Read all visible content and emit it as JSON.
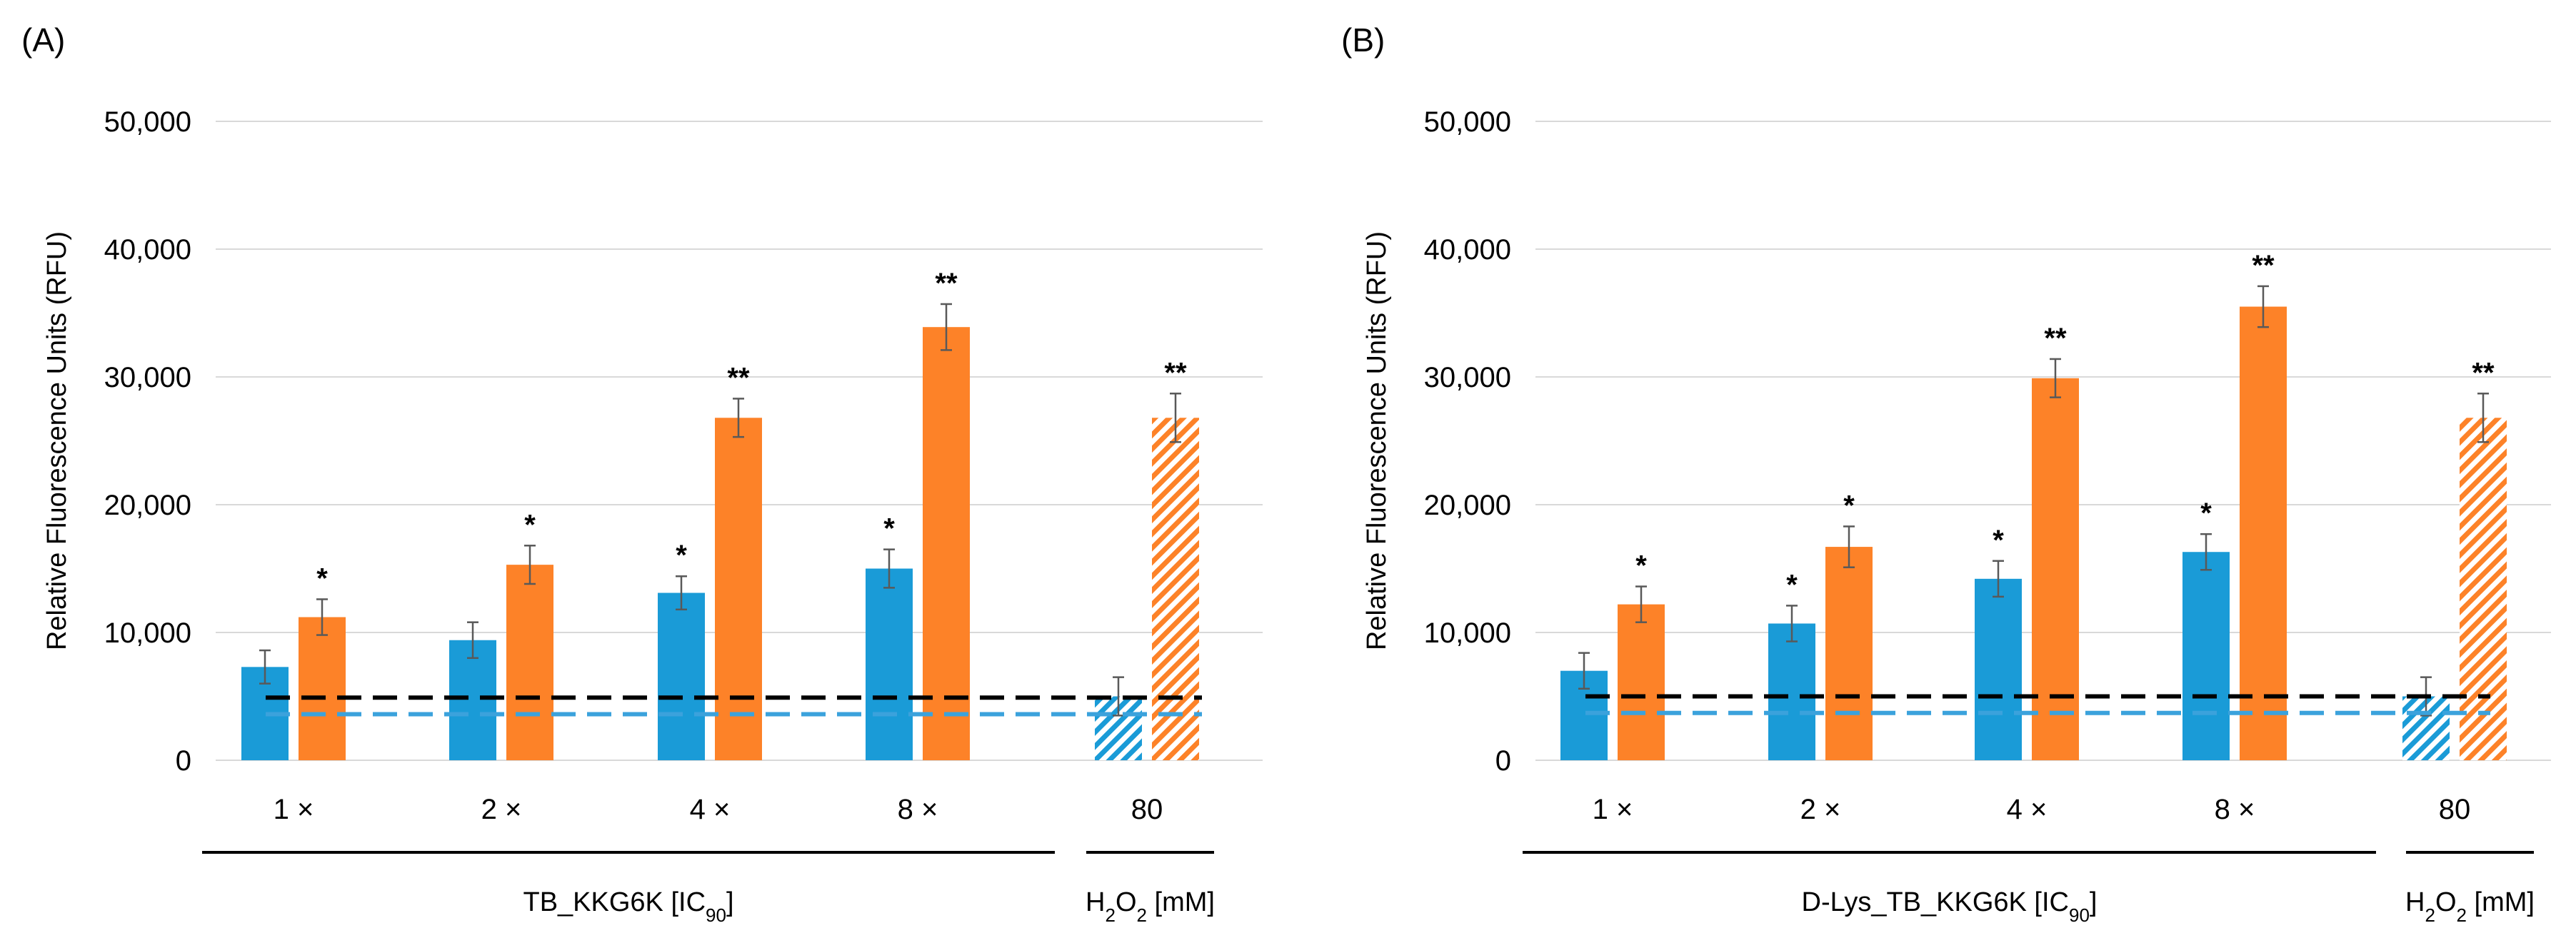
{
  "colors": {
    "blue": "#1a9bd7",
    "orange": "#fd8228",
    "grid": "#d9d9d9",
    "baseline_black": "#000000",
    "baseline_blue": "#3ba2dc",
    "errorbar": "#595959"
  },
  "chart_data": [
    {
      "type": "bar",
      "panel_label": "(A)",
      "ylabel": "Relative Fluorescence Units (RFU)",
      "ylim": [
        0,
        50000
      ],
      "yticks": [
        0,
        10000,
        20000,
        30000,
        40000,
        50000
      ],
      "ytick_labels": [
        "0",
        "10,000",
        "20,000",
        "30,000",
        "40,000",
        "50,000"
      ],
      "grid": true,
      "categories": [
        "1 ×",
        "2 ×",
        "4 ×",
        "8 ×",
        "80"
      ],
      "series": [
        {
          "name": "blue",
          "values": [
            7300,
            9400,
            13100,
            15000,
            5000
          ],
          "errors": [
            1300,
            1400,
            1300,
            1500,
            1500
          ],
          "significance": [
            "",
            "",
            "*",
            "*",
            ""
          ]
        },
        {
          "name": "orange",
          "values": [
            11200,
            15300,
            26800,
            33900,
            26800
          ],
          "errors": [
            1400,
            1500,
            1500,
            1800,
            1900
          ],
          "significance": [
            "*",
            "*",
            "**",
            "**",
            "**"
          ]
        }
      ],
      "hatched_category": "80",
      "reference_lines": [
        {
          "color": "black",
          "value": 4900,
          "style": "dashed"
        },
        {
          "color": "blue",
          "value": 3600,
          "style": "dashed"
        }
      ],
      "group_labels": {
        "treatment_prefix": "TB_KKG6K [IC",
        "treatment_sub": "90",
        "treatment_suffix": "]",
        "h2o2_h": "H",
        "h2o2_sub": "2",
        "h2o2_o": "O",
        "h2o2_sub2": "2",
        "h2o2_unit": " [mM]"
      }
    },
    {
      "type": "bar",
      "panel_label": "(B)",
      "ylabel": "Relative Fluorescence Units (RFU)",
      "ylim": [
        0,
        50000
      ],
      "yticks": [
        0,
        10000,
        20000,
        30000,
        40000,
        50000
      ],
      "ytick_labels": [
        "0",
        "10,000",
        "20,000",
        "30,000",
        "40,000",
        "50,000"
      ],
      "grid": true,
      "categories": [
        "1 ×",
        "2 ×",
        "4 ×",
        "8 ×",
        "80"
      ],
      "series": [
        {
          "name": "blue",
          "values": [
            7000,
            10700,
            14200,
            16300,
            5000
          ],
          "errors": [
            1400,
            1400,
            1400,
            1400,
            1500
          ],
          "significance": [
            "",
            "*",
            "*",
            "*",
            ""
          ]
        },
        {
          "name": "orange",
          "values": [
            12200,
            16700,
            29900,
            35500,
            26800
          ],
          "errors": [
            1400,
            1600,
            1500,
            1600,
            1900
          ],
          "significance": [
            "*",
            "*",
            "**",
            "**",
            "**"
          ]
        }
      ],
      "hatched_category": "80",
      "reference_lines": [
        {
          "color": "black",
          "value": 5000,
          "style": "dashed"
        },
        {
          "color": "blue",
          "value": 3700,
          "style": "dashed"
        }
      ],
      "group_labels": {
        "treatment_prefix": "D-Lys_TB_KKG6K [IC",
        "treatment_sub": "90",
        "treatment_suffix": "]",
        "h2o2_h": "H",
        "h2o2_sub": "2",
        "h2o2_o": "O",
        "h2o2_sub2": "2",
        "h2o2_unit": " [mM]"
      }
    }
  ]
}
